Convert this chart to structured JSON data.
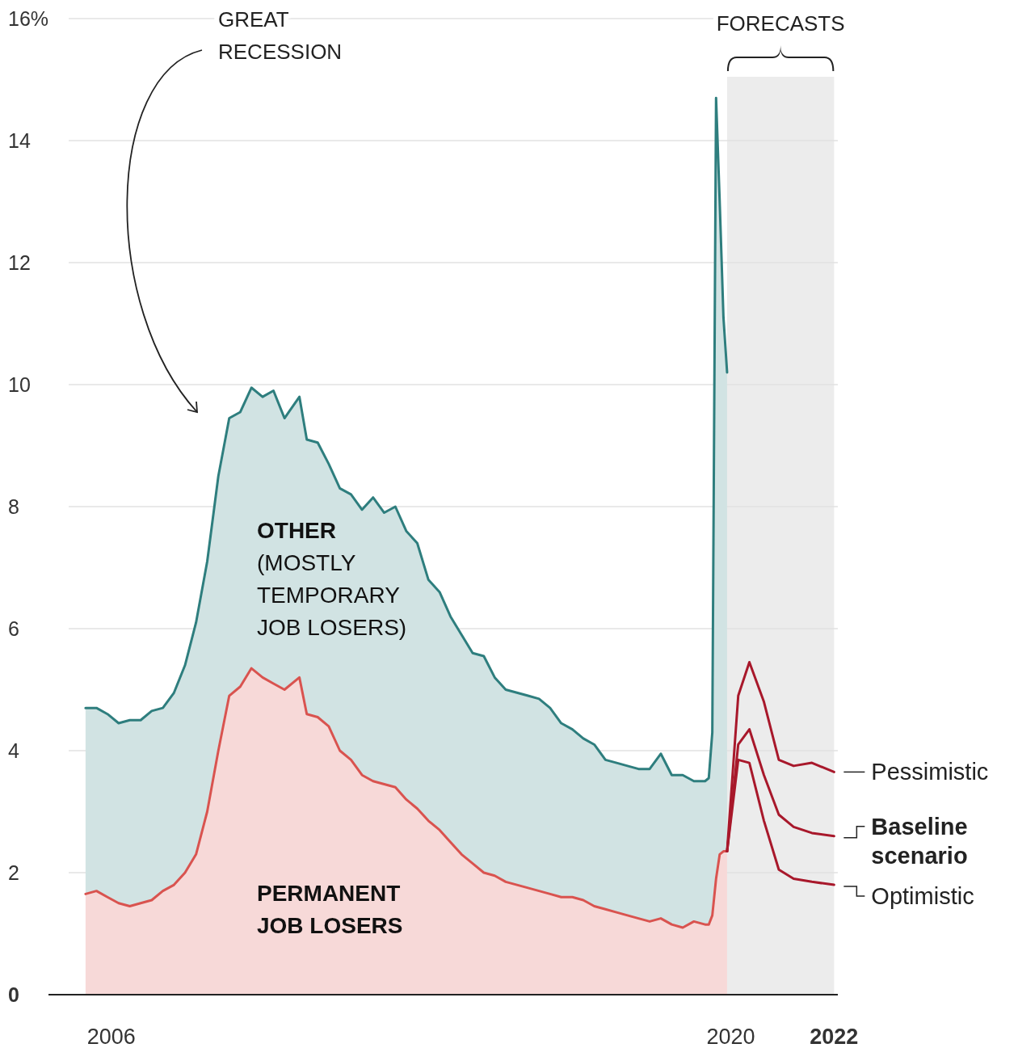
{
  "chart_data": {
    "type": "area",
    "stacked": true,
    "grid": "y",
    "legend": false,
    "x": [
      "2006-01",
      "2006-04",
      "2006-07",
      "2006-10",
      "2007-01",
      "2007-04",
      "2007-07",
      "2007-10",
      "2008-01",
      "2008-04",
      "2008-07",
      "2008-10",
      "2009-01",
      "2009-04",
      "2009-07",
      "2009-10",
      "2010-01",
      "2010-04",
      "2010-07",
      "2010-11",
      "2011-01",
      "2011-04",
      "2011-07",
      "2011-10",
      "2012-01",
      "2012-04",
      "2012-07",
      "2012-10",
      "2013-01",
      "2013-04",
      "2013-07",
      "2013-10",
      "2014-01",
      "2014-04",
      "2014-07",
      "2014-10",
      "2015-01",
      "2015-04",
      "2015-07",
      "2015-10",
      "2016-01",
      "2016-04",
      "2016-07",
      "2016-10",
      "2017-01",
      "2017-04",
      "2017-07",
      "2017-10",
      "2018-01",
      "2018-04",
      "2018-07",
      "2018-10",
      "2019-01",
      "2019-04",
      "2019-07",
      "2019-10",
      "2020-01",
      "2020-02",
      "2020-03",
      "2020-04",
      "2020-05",
      "2020-06",
      "2020-07"
    ],
    "series": [
      {
        "name": "PERMANENT JOB LOSERS",
        "color": "#d9534f",
        "values": [
          1.65,
          1.7,
          1.6,
          1.5,
          1.45,
          1.5,
          1.55,
          1.7,
          1.8,
          2.0,
          2.3,
          3.0,
          4.0,
          4.9,
          5.05,
          5.35,
          5.2,
          5.1,
          5.0,
          5.2,
          4.6,
          4.55,
          4.4,
          4.0,
          3.85,
          3.6,
          3.5,
          3.45,
          3.4,
          3.2,
          3.05,
          2.85,
          2.7,
          2.5,
          2.3,
          2.15,
          2.0,
          1.95,
          1.85,
          1.8,
          1.75,
          1.7,
          1.65,
          1.6,
          1.6,
          1.55,
          1.45,
          1.4,
          1.35,
          1.3,
          1.25,
          1.2,
          1.25,
          1.15,
          1.1,
          1.2,
          1.15,
          1.15,
          1.3,
          1.9,
          2.3,
          2.35,
          2.35
        ]
      },
      {
        "name": "OTHER (MOSTLY TEMPORARY JOB LOSERS)",
        "color": "#2e7e7e",
        "values": [
          3.05,
          3.0,
          3.0,
          2.95,
          3.05,
          3.0,
          3.1,
          3.0,
          3.15,
          3.4,
          3.8,
          4.1,
          4.5,
          4.55,
          4.5,
          4.6,
          4.6,
          4.8,
          4.45,
          4.6,
          4.5,
          4.5,
          4.3,
          4.3,
          4.35,
          4.35,
          4.65,
          4.45,
          4.6,
          4.4,
          4.35,
          3.95,
          3.9,
          3.7,
          3.6,
          3.45,
          3.55,
          3.25,
          3.15,
          3.15,
          3.15,
          3.15,
          3.05,
          2.85,
          2.75,
          2.65,
          2.65,
          2.45,
          2.45,
          2.45,
          2.45,
          2.5,
          2.7,
          2.45,
          2.5,
          2.3,
          2.35,
          2.4,
          3.0,
          12.8,
          10.7,
          8.75,
          7.85
        ]
      },
      {
        "name": "Pessimistic",
        "type": "line",
        "color": "#a8182b",
        "x": [
          "2020-07",
          "2020-10",
          "2021-01",
          "2021-05",
          "2021-09",
          "2022-01",
          "2022-06",
          "2022-12"
        ],
        "values": [
          2.35,
          4.9,
          5.45,
          4.8,
          3.85,
          3.75,
          3.8,
          3.65
        ]
      },
      {
        "name": "Baseline scenario",
        "type": "line",
        "color": "#a8182b",
        "x": [
          "2020-07",
          "2020-10",
          "2021-01",
          "2021-05",
          "2021-09",
          "2022-01",
          "2022-06",
          "2022-12"
        ],
        "values": [
          2.35,
          4.1,
          4.35,
          3.6,
          2.95,
          2.75,
          2.65,
          2.6
        ]
      },
      {
        "name": "Optimistic",
        "type": "line",
        "color": "#a8182b",
        "x": [
          "2020-07",
          "2020-10",
          "2021-01",
          "2021-05",
          "2021-09",
          "2022-01",
          "2022-06",
          "2022-12"
        ],
        "values": [
          2.35,
          3.85,
          3.8,
          2.85,
          2.05,
          1.9,
          1.85,
          1.8
        ]
      }
    ],
    "xlim": [
      "2005-03",
      "2023-01"
    ],
    "xticks": [
      {
        "value": "2006-08",
        "label": "2006"
      },
      {
        "value": "2020-08",
        "label": "2020"
      },
      {
        "value": "2022-12",
        "label": "2022"
      }
    ],
    "ylim": [
      0,
      16
    ],
    "yticks": [
      0,
      2,
      4,
      6,
      8,
      10,
      12,
      14,
      {
        "value": 16,
        "label": "16%"
      }
    ],
    "bands": [
      {
        "axis": "x",
        "from": "2020-07",
        "to": "2022-12",
        "label": "FORECASTS",
        "color": "#ececec"
      }
    ],
    "annotations": [
      "GREAT RECESSION"
    ]
  }
}
